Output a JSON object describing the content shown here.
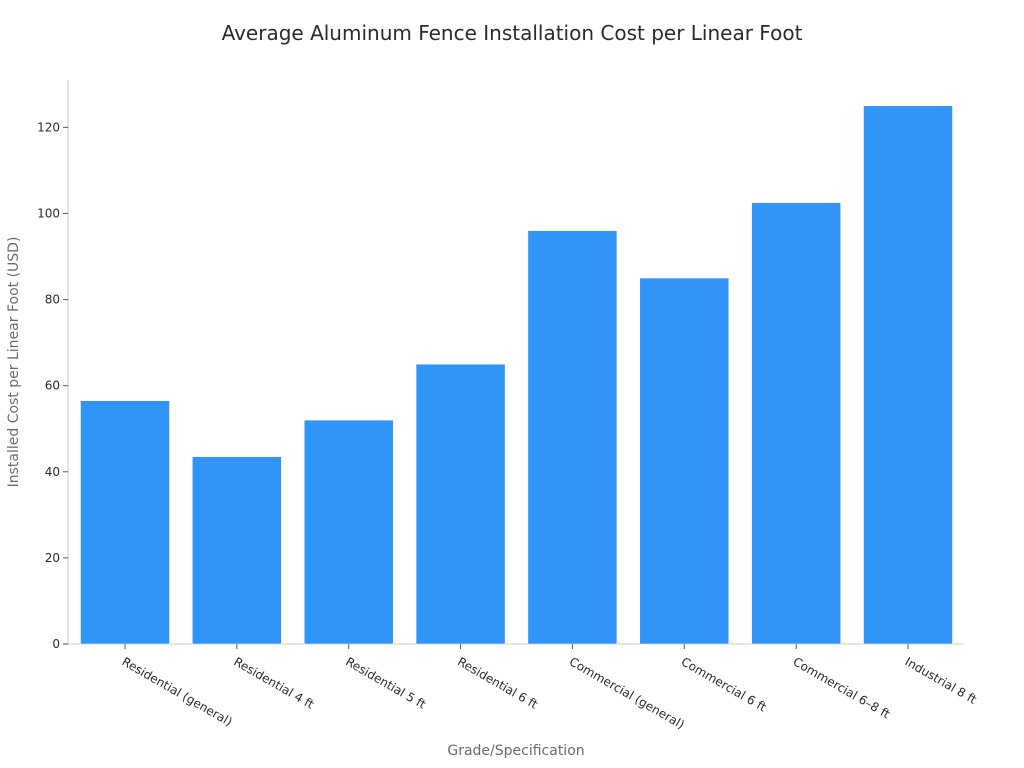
{
  "chart_data": {
    "type": "bar",
    "title": "Average Aluminum Fence Installation Cost per Linear Foot",
    "xlabel": "Grade/Specification",
    "ylabel": "Installed Cost per Linear Foot (USD)",
    "categories": [
      "Residential (general)",
      "Residential 4 ft",
      "Residential 5 ft",
      "Residential 6 ft",
      "Commercial (general)",
      "Commercial 6 ft",
      "Commercial 6–8 ft",
      "Industrial 8 ft"
    ],
    "values": [
      56.5,
      43.5,
      52,
      65,
      96,
      85,
      102.5,
      125
    ],
    "ylim": [
      0,
      131
    ],
    "yticks": [
      0,
      20,
      40,
      60,
      80,
      100,
      120
    ],
    "bar_color": "#3194f7",
    "grid": false,
    "legend": "none"
  }
}
